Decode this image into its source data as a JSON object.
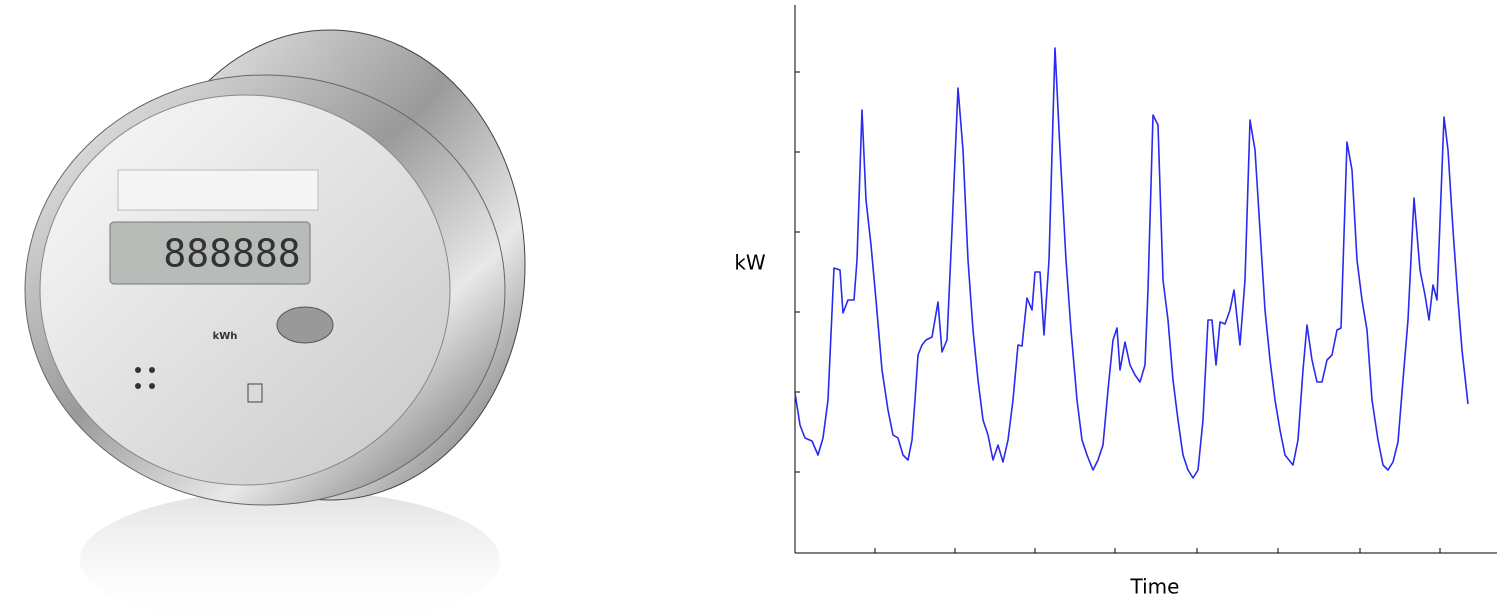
{
  "meter": {
    "display": "888888",
    "unit": "kWh"
  },
  "chart_data": {
    "type": "line",
    "xlabel": "Time",
    "ylabel": "kW",
    "x": [
      0,
      5,
      10,
      17,
      23,
      28,
      33,
      39,
      45,
      48,
      53,
      59,
      62,
      67,
      71,
      76,
      81,
      87,
      93,
      98,
      103,
      108,
      113,
      117,
      120,
      123,
      127,
      131,
      137,
      143,
      147,
      152,
      157,
      163,
      168,
      173,
      178,
      183,
      188,
      193,
      198,
      203,
      208,
      213,
      218,
      223,
      227,
      232,
      237,
      240,
      245,
      249,
      254,
      260,
      265,
      271,
      276,
      282,
      287,
      292,
      298,
      303,
      308,
      313,
      318,
      322,
      325,
      330,
      335,
      340,
      345,
      350,
      353,
      358,
      363,
      368,
      373,
      378,
      383,
      388,
      393,
      398,
      403,
      408,
      413,
      417,
      421,
      425,
      430,
      435,
      439,
      445,
      450,
      455,
      460,
      465,
      470,
      475,
      480,
      485,
      490,
      498,
      503,
      508,
      512,
      517,
      522,
      527,
      532,
      537,
      542,
      546,
      552,
      557,
      562,
      567,
      572,
      577,
      583,
      588,
      593,
      598,
      603,
      608,
      613,
      619,
      625,
      630,
      634,
      638,
      642,
      649,
      653,
      658,
      663,
      667,
      673
    ],
    "series": [
      {
        "color": "#2a2af0",
        "values": [
          160,
          128,
          115,
          112,
          98,
          115,
          153,
          285,
          283,
          240,
          253,
          253,
          293,
          443,
          353,
          308,
          253,
          183,
          143,
          118,
          115,
          98,
          93,
          113,
          153,
          198,
          208,
          213,
          216,
          251,
          201,
          213,
          323,
          465,
          403,
          293,
          223,
          173,
          133,
          118,
          93,
          108,
          91,
          113,
          153,
          208,
          207,
          255,
          243,
          281,
          281,
          218,
          293,
          505,
          403,
          293,
          223,
          153,
          113,
          98,
          83,
          93,
          108,
          163,
          213,
          225,
          183,
          211,
          188,
          178,
          171,
          188,
          263,
          438,
          428,
          273,
          233,
          173,
          133,
          98,
          83,
          75,
          83,
          133,
          233,
          233,
          188,
          231,
          229,
          243,
          263,
          208,
          273,
          433,
          403,
          323,
          243,
          193,
          153,
          123,
          98,
          88,
          113,
          183,
          228,
          193,
          171,
          171,
          193,
          198,
          223,
          225,
          411,
          383,
          293,
          253,
          223,
          153,
          113,
          88,
          83,
          91,
          111,
          173,
          233,
          355,
          283,
          258,
          233,
          268,
          253,
          436,
          403,
          323,
          253,
          203,
          149
        ]
      }
    ],
    "xlim": [
      0,
      702
    ],
    "ylim": [
      0,
      548
    ],
    "xticks": [
      80,
      160,
      240,
      320,
      402,
      483,
      565,
      645
    ],
    "yticks": [
      81,
      161,
      241,
      321,
      401,
      481
    ]
  }
}
